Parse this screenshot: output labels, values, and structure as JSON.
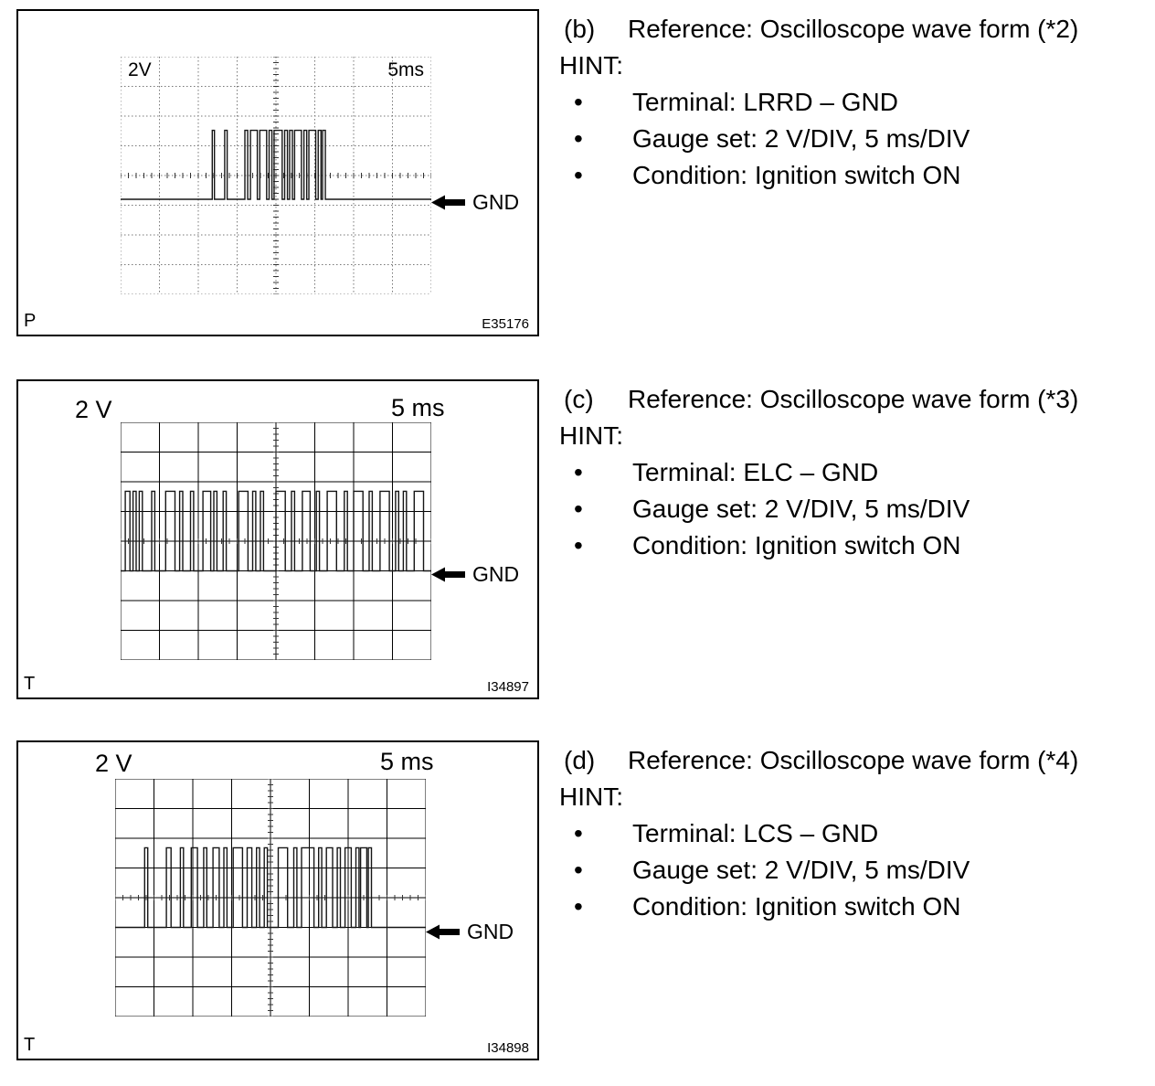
{
  "bullet_char": "•",
  "panels": [
    {
      "label": "(b)",
      "reference": "Reference: Oscilloscope wave form (*2)",
      "hint": "HINT:",
      "bullets": [
        "Terminal: LRRD – GND",
        "Gauge set: 2 V/DIV, 5 ms/DIV",
        "Condition: Ignition switch ON"
      ],
      "scope": {
        "volt_label": "2V",
        "time_label": "5ms",
        "gnd_label": "GND",
        "corner_letter": "P",
        "figure_code": "E35176",
        "grid": {
          "cols": 8,
          "rows": 8,
          "style": "dotted"
        },
        "waveform": {
          "baseline": 0.6,
          "high": 0.31,
          "pulses": [
            [
              0.295,
              0.302
            ],
            [
              0.335,
              0.343
            ],
            [
              0.4,
              0.409
            ],
            [
              0.418,
              0.44
            ],
            [
              0.448,
              0.47
            ],
            [
              0.478,
              0.487
            ],
            [
              0.494,
              0.52
            ],
            [
              0.528,
              0.537
            ],
            [
              0.544,
              0.553
            ],
            [
              0.56,
              0.582
            ],
            [
              0.59,
              0.599
            ],
            [
              0.606,
              0.628
            ],
            [
              0.636,
              0.645
            ],
            [
              0.65,
              0.659
            ]
          ]
        }
      }
    },
    {
      "label": "(c)",
      "reference": "Reference: Oscilloscope wave form (*3)",
      "hint": "HINT:",
      "bullets": [
        "Terminal: ELC – GND",
        "Gauge set: 2 V/DIV, 5 ms/DIV",
        "Condition: Ignition switch ON"
      ],
      "scope": {
        "volt_label": "2 V",
        "time_label": "5 ms",
        "gnd_label": "GND",
        "corner_letter": "T",
        "figure_code": "I34897",
        "grid": {
          "cols": 8,
          "rows": 8,
          "style": "solid"
        },
        "waveform": {
          "baseline": 0.625,
          "high": 0.29,
          "pulses": [
            [
              0.015,
              0.03
            ],
            [
              0.04,
              0.05
            ],
            [
              0.06,
              0.07
            ],
            [
              0.1,
              0.11
            ],
            [
              0.145,
              0.175
            ],
            [
              0.19,
              0.2
            ],
            [
              0.225,
              0.235
            ],
            [
              0.265,
              0.29
            ],
            [
              0.3,
              0.31
            ],
            [
              0.33,
              0.34
            ],
            [
              0.38,
              0.41
            ],
            [
              0.425,
              0.435
            ],
            [
              0.45,
              0.46
            ],
            [
              0.5,
              0.53
            ],
            [
              0.55,
              0.56
            ],
            [
              0.585,
              0.61
            ],
            [
              0.63,
              0.64
            ],
            [
              0.665,
              0.695
            ],
            [
              0.72,
              0.73
            ],
            [
              0.75,
              0.78
            ],
            [
              0.8,
              0.81
            ],
            [
              0.835,
              0.865
            ],
            [
              0.885,
              0.895
            ],
            [
              0.91,
              0.92
            ],
            [
              0.945,
              0.975
            ]
          ]
        }
      }
    },
    {
      "label": "(d)",
      "reference": "Reference: Oscilloscope wave form (*4)",
      "hint": "HINT:",
      "bullets": [
        "Terminal: LCS – GND",
        "Gauge set: 2 V/DIV, 5 ms/DIV",
        "Condition: Ignition switch ON"
      ],
      "scope": {
        "volt_label": "2 V",
        "time_label": "5 ms",
        "gnd_label": "GND",
        "corner_letter": "T",
        "figure_code": "I34898",
        "grid": {
          "cols": 8,
          "rows": 8,
          "style": "solid"
        },
        "waveform": {
          "baseline": 0.625,
          "high": 0.29,
          "pulses": [
            [
              0.095,
              0.105
            ],
            [
              0.165,
              0.18
            ],
            [
              0.21,
              0.22
            ],
            [
              0.245,
              0.265
            ],
            [
              0.285,
              0.295
            ],
            [
              0.315,
              0.335
            ],
            [
              0.35,
              0.36
            ],
            [
              0.38,
              0.41
            ],
            [
              0.425,
              0.44
            ],
            [
              0.455,
              0.465
            ],
            [
              0.48,
              0.49
            ],
            [
              0.525,
              0.555
            ],
            [
              0.575,
              0.585
            ],
            [
              0.6,
              0.64
            ],
            [
              0.655,
              0.665
            ],
            [
              0.68,
              0.7
            ],
            [
              0.715,
              0.725
            ],
            [
              0.74,
              0.76
            ],
            [
              0.775,
              0.785
            ],
            [
              0.79,
              0.81
            ],
            [
              0.815,
              0.825
            ]
          ]
        }
      }
    }
  ]
}
